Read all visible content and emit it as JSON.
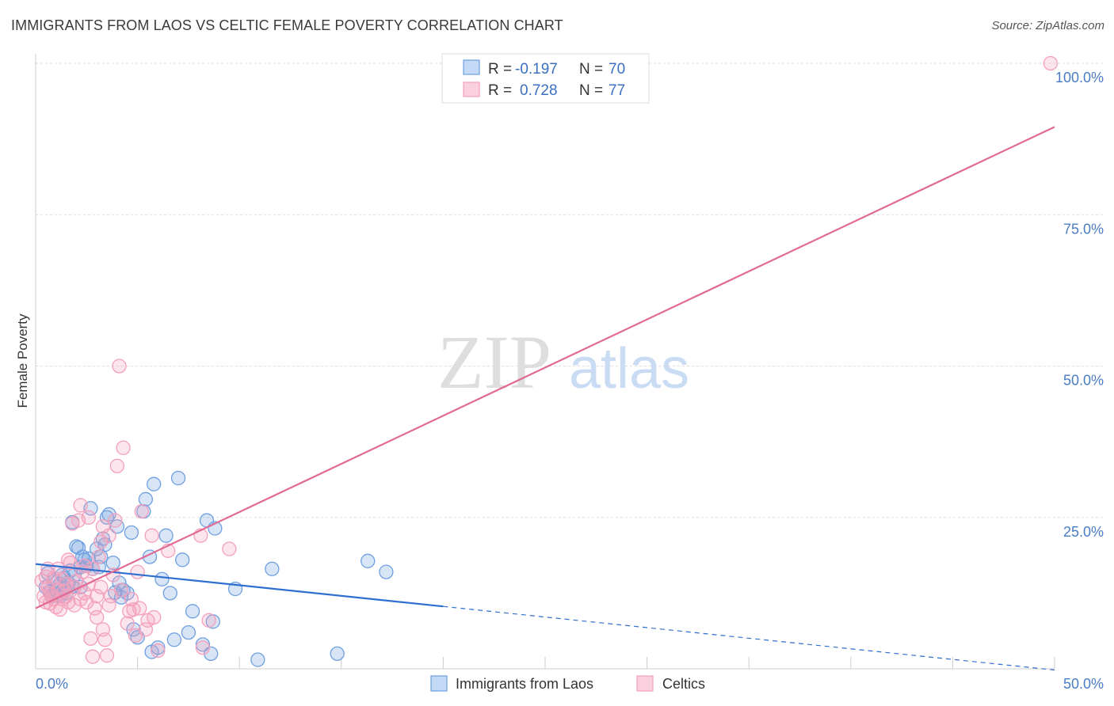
{
  "chart_data": {
    "type": "scatter",
    "title": "IMMIGRANTS FROM LAOS VS CELTIC FEMALE POVERTY CORRELATION CHART",
    "source": "Source: ZipAtlas.com",
    "ylabel": "Female Poverty",
    "xlabel": "",
    "xlim": [
      0,
      50
    ],
    "ylim": [
      0,
      100
    ],
    "x_tick_labels": [
      "0.0%",
      "50.0%"
    ],
    "y_ticks": [
      25,
      50,
      75,
      100
    ],
    "y_tick_labels": [
      "25.0%",
      "50.0%",
      "75.0%",
      "100.0%"
    ],
    "grid": true,
    "watermark": "ZIPatlas",
    "legend": {
      "placement": "top-center",
      "entries": [
        {
          "r_label": "R =",
          "r_value": "-0.197",
          "n_label": "N =",
          "n_value": "70"
        },
        {
          "r_label": "R =",
          "r_value": "0.728",
          "n_label": "N =",
          "n_value": "77"
        }
      ]
    },
    "series": [
      {
        "name": "Immigrants from Laos",
        "color": "#6fa0e0",
        "line_color": "#2f6fd0",
        "trend": {
          "x0": 0,
          "y0": 17.3,
          "x1": 20,
          "y1": 10.3,
          "dash_x1": 50,
          "dash_y1": -0.2
        },
        "points": [
          [
            0.5,
            13.5
          ],
          [
            0.7,
            12.8
          ],
          [
            0.9,
            14.5
          ],
          [
            1.0,
            13.0
          ],
          [
            1.1,
            12.2
          ],
          [
            1.2,
            14.0
          ],
          [
            1.3,
            15.5
          ],
          [
            1.4,
            13.2
          ],
          [
            1.5,
            12.5
          ],
          [
            0.6,
            15.8
          ],
          [
            0.8,
            12.0
          ],
          [
            1.6,
            14.2
          ],
          [
            1.8,
            13.6
          ],
          [
            2.0,
            20.2
          ],
          [
            2.2,
            16.8
          ],
          [
            1.7,
            16.2
          ],
          [
            2.5,
            17.0
          ],
          [
            2.6,
            18.2
          ],
          [
            2.1,
            20.0
          ],
          [
            2.8,
            16.5
          ],
          [
            3.0,
            19.8
          ],
          [
            3.2,
            18.5
          ],
          [
            3.5,
            25.0
          ],
          [
            3.6,
            25.5
          ],
          [
            3.8,
            17.5
          ],
          [
            4.0,
            23.5
          ],
          [
            3.3,
            21.5
          ],
          [
            3.9,
            12.6
          ],
          [
            4.2,
            11.8
          ],
          [
            4.5,
            12.5
          ],
          [
            4.8,
            6.5
          ],
          [
            5.0,
            5.2
          ],
          [
            4.7,
            22.5
          ],
          [
            5.3,
            26.0
          ],
          [
            5.4,
            28.0
          ],
          [
            5.6,
            18.5
          ],
          [
            5.7,
            2.8
          ],
          [
            5.8,
            30.5
          ],
          [
            6.0,
            3.5
          ],
          [
            6.2,
            14.8
          ],
          [
            6.4,
            22.0
          ],
          [
            6.6,
            12.5
          ],
          [
            6.8,
            4.8
          ],
          [
            7.0,
            31.5
          ],
          [
            7.2,
            18.0
          ],
          [
            7.5,
            6.0
          ],
          [
            7.7,
            9.5
          ],
          [
            8.2,
            4.0
          ],
          [
            8.4,
            24.5
          ],
          [
            8.6,
            2.5
          ],
          [
            8.7,
            7.8
          ],
          [
            8.8,
            23.2
          ],
          [
            9.8,
            13.2
          ],
          [
            10.9,
            1.5
          ],
          [
            11.6,
            16.5
          ],
          [
            14.8,
            2.5
          ],
          [
            16.3,
            17.8
          ],
          [
            17.2,
            16.0
          ],
          [
            2.7,
            26.5
          ],
          [
            1.8,
            24.2
          ],
          [
            3.1,
            16.8
          ],
          [
            4.1,
            14.2
          ],
          [
            2.4,
            18.0
          ],
          [
            1.4,
            15.0
          ],
          [
            1.2,
            12.0
          ],
          [
            1.9,
            15.5
          ],
          [
            3.4,
            20.5
          ],
          [
            4.3,
            13.0
          ],
          [
            2.3,
            18.5
          ],
          [
            2.2,
            13.5
          ]
        ]
      },
      {
        "name": "Celtics",
        "color": "#f3a0bc",
        "line_color": "#e06a94",
        "trend": {
          "x0": 0,
          "y0": 10.0,
          "x1": 50,
          "y1": 89.5
        },
        "points": [
          [
            0.4,
            12.0
          ],
          [
            0.5,
            11.0
          ],
          [
            0.6,
            13.5
          ],
          [
            0.7,
            10.8
          ],
          [
            0.8,
            12.2
          ],
          [
            0.9,
            11.5
          ],
          [
            1.0,
            10.2
          ],
          [
            1.1,
            13.0
          ],
          [
            1.2,
            9.8
          ],
          [
            0.3,
            14.5
          ],
          [
            0.5,
            15.2
          ],
          [
            0.6,
            16.5
          ],
          [
            1.3,
            11.5
          ],
          [
            1.4,
            12.8
          ],
          [
            1.5,
            14.0
          ],
          [
            1.6,
            18.0
          ],
          [
            1.7,
            17.5
          ],
          [
            1.8,
            24.0
          ],
          [
            1.9,
            13.5
          ],
          [
            2.0,
            14.5
          ],
          [
            2.1,
            24.5
          ],
          [
            2.2,
            27.0
          ],
          [
            2.3,
            16.0
          ],
          [
            2.4,
            12.5
          ],
          [
            2.5,
            11.0
          ],
          [
            2.6,
            25.0
          ],
          [
            2.7,
            5.0
          ],
          [
            2.8,
            2.0
          ],
          [
            2.9,
            10.0
          ],
          [
            3.0,
            8.5
          ],
          [
            3.1,
            18.5
          ],
          [
            3.2,
            21.0
          ],
          [
            3.3,
            6.5
          ],
          [
            3.4,
            4.8
          ],
          [
            3.5,
            2.2
          ],
          [
            3.6,
            22.0
          ],
          [
            3.7,
            12.0
          ],
          [
            3.8,
            15.5
          ],
          [
            3.9,
            24.5
          ],
          [
            4.0,
            33.5
          ],
          [
            4.1,
            50.0
          ],
          [
            4.3,
            36.5
          ],
          [
            4.5,
            7.5
          ],
          [
            4.6,
            9.5
          ],
          [
            4.7,
            11.5
          ],
          [
            4.8,
            9.8
          ],
          [
            5.0,
            16.0
          ],
          [
            5.2,
            26.0
          ],
          [
            5.4,
            6.5
          ],
          [
            5.5,
            8.0
          ],
          [
            5.7,
            22.0
          ],
          [
            5.8,
            8.5
          ],
          [
            6.0,
            3.0
          ],
          [
            6.5,
            19.5
          ],
          [
            8.1,
            22.0
          ],
          [
            8.2,
            3.5
          ],
          [
            9.5,
            19.8
          ],
          [
            2.6,
            14.0
          ],
          [
            3.2,
            13.5
          ],
          [
            1.1,
            16.5
          ],
          [
            0.9,
            15.0
          ],
          [
            1.6,
            11.0
          ],
          [
            2.4,
            17.0
          ],
          [
            3.0,
            12.0
          ],
          [
            0.7,
            12.5
          ],
          [
            1.9,
            10.5
          ],
          [
            4.2,
            13.0
          ],
          [
            2.2,
            11.5
          ],
          [
            2.8,
            16.5
          ],
          [
            3.6,
            10.5
          ],
          [
            1.3,
            14.8
          ],
          [
            5.1,
            10.0
          ],
          [
            4.9,
            5.5
          ],
          [
            3.3,
            23.5
          ],
          [
            1.5,
            12.0
          ],
          [
            49.8,
            100.0
          ],
          [
            8.5,
            8.0
          ]
        ]
      }
    ]
  }
}
